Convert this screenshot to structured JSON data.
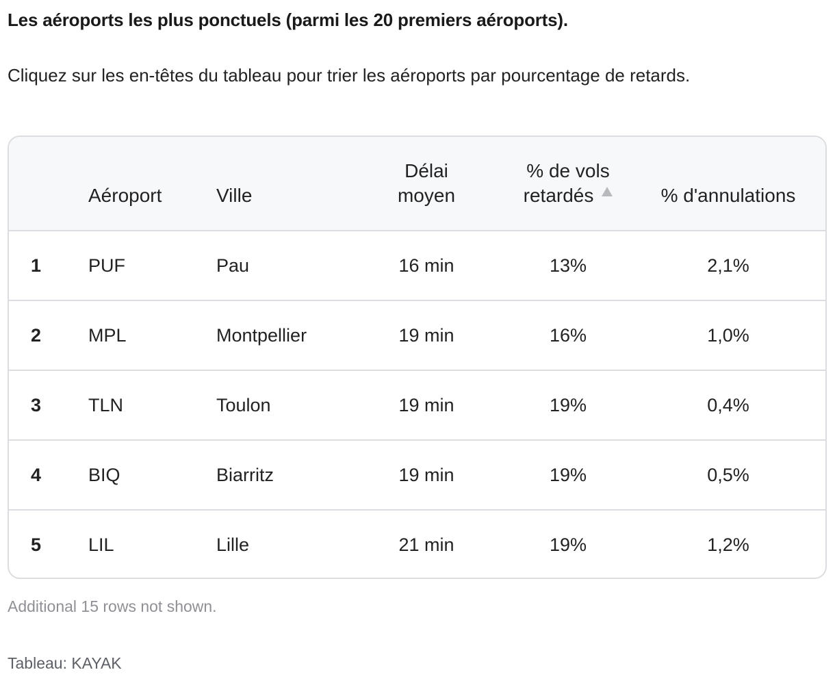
{
  "title": "Les aéroports les plus ponctuels (parmi les 20 premiers aéroports).",
  "subtitle": "Cliquez sur les en-têtes du tableau pour trier les aéroports par pourcentage de retards.",
  "table": {
    "headers": {
      "rank": "",
      "airport": "Aéroport",
      "city": "Ville",
      "delay_line1": "Délai",
      "delay_line2": "moyen",
      "delayed_line1": "% de vols",
      "delayed_line2": "retardés",
      "cancellations": "% d'annulations"
    },
    "sorted_column": "delayed",
    "sort_direction": "ascending",
    "rows": [
      {
        "rank": "1",
        "airport": "PUF",
        "city": "Pau",
        "delay": "16 min",
        "delayed": "13%",
        "cancellations": "2,1%"
      },
      {
        "rank": "2",
        "airport": "MPL",
        "city": "Montpellier",
        "delay": "19 min",
        "delayed": "16%",
        "cancellations": "1,0%"
      },
      {
        "rank": "3",
        "airport": "TLN",
        "city": "Toulon",
        "delay": "19 min",
        "delayed": "19%",
        "cancellations": "0,4%"
      },
      {
        "rank": "4",
        "airport": "BIQ",
        "city": "Biarritz",
        "delay": "19 min",
        "delayed": "19%",
        "cancellations": "0,5%"
      },
      {
        "rank": "5",
        "airport": "LIL",
        "city": "Lille",
        "delay": "21 min",
        "delayed": "19%",
        "cancellations": "1,2%"
      }
    ]
  },
  "notice": "Additional 15 rows not shown.",
  "source": "Tableau: KAYAK",
  "colors": {
    "header_bg": "#f7f8fa",
    "border": "#dcdde0",
    "sort_arrow": "#b8b9bd",
    "muted_text": "#8e9096"
  }
}
